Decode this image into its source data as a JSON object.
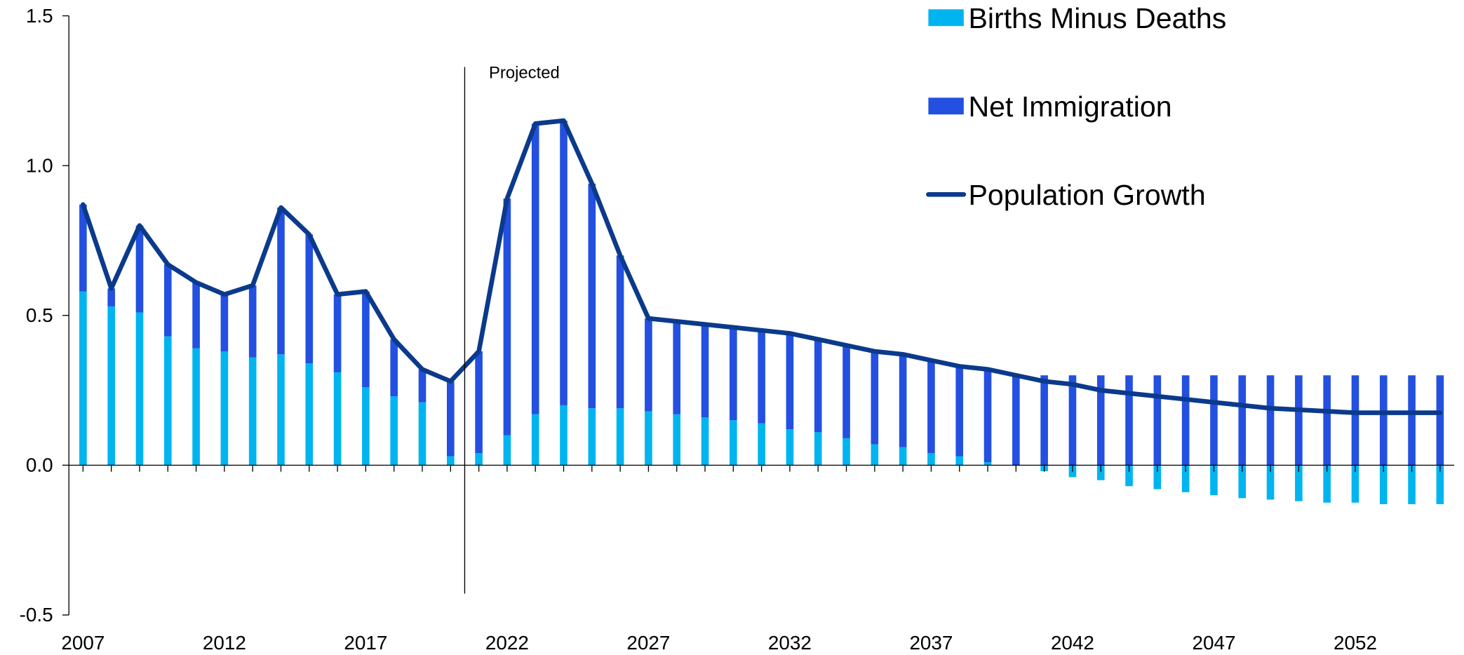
{
  "chart_data": {
    "type": "stacked-bar-line",
    "x": [
      2007,
      2008,
      2009,
      2010,
      2011,
      2012,
      2013,
      2014,
      2015,
      2016,
      2017,
      2018,
      2019,
      2020,
      2021,
      2022,
      2023,
      2024,
      2025,
      2026,
      2027,
      2028,
      2029,
      2030,
      2031,
      2032,
      2033,
      2034,
      2035,
      2036,
      2037,
      2038,
      2039,
      2040,
      2041,
      2042,
      2043,
      2044,
      2045,
      2046,
      2047,
      2048,
      2049,
      2050,
      2051,
      2052,
      2053,
      2054,
      2055
    ],
    "series": [
      {
        "name": "Births Minus Deaths",
        "kind": "bar",
        "color": "#00b4f0",
        "values": [
          0.58,
          0.53,
          0.51,
          0.43,
          0.39,
          0.38,
          0.36,
          0.37,
          0.34,
          0.31,
          0.26,
          0.23,
          0.21,
          0.03,
          0.04,
          0.1,
          0.17,
          0.2,
          0.19,
          0.19,
          0.18,
          0.17,
          0.16,
          0.15,
          0.14,
          0.12,
          0.11,
          0.09,
          0.07,
          0.06,
          0.04,
          0.03,
          0.01,
          0.0,
          -0.02,
          -0.04,
          -0.05,
          -0.07,
          -0.08,
          -0.09,
          -0.1,
          -0.11,
          -0.115,
          -0.12,
          -0.125,
          -0.125,
          -0.13,
          -0.13,
          -0.13
        ]
      },
      {
        "name": "Net Immigration",
        "kind": "bar",
        "color": "#2350e0",
        "values": [
          0.29,
          0.06,
          0.29,
          0.24,
          0.22,
          0.19,
          0.24,
          0.49,
          0.43,
          0.26,
          0.32,
          0.19,
          0.11,
          0.25,
          0.34,
          0.79,
          0.97,
          0.95,
          0.75,
          0.51,
          0.31,
          0.31,
          0.31,
          0.31,
          0.31,
          0.32,
          0.31,
          0.31,
          0.31,
          0.31,
          0.31,
          0.3,
          0.31,
          0.3,
          0.3,
          0.3,
          0.3,
          0.3,
          0.3,
          0.3,
          0.3,
          0.3,
          0.3,
          0.3,
          0.3,
          0.3,
          0.3,
          0.3,
          0.3
        ]
      },
      {
        "name": "Population Growth",
        "kind": "line",
        "color": "#0b3a8c",
        "values": [
          0.87,
          0.59,
          0.8,
          0.67,
          0.61,
          0.57,
          0.6,
          0.86,
          0.77,
          0.57,
          0.58,
          0.42,
          0.32,
          0.28,
          0.38,
          0.89,
          1.14,
          1.15,
          0.94,
          0.7,
          0.49,
          0.48,
          0.47,
          0.46,
          0.45,
          0.44,
          0.42,
          0.4,
          0.38,
          0.37,
          0.35,
          0.33,
          0.32,
          0.3,
          0.28,
          0.27,
          0.25,
          0.24,
          0.23,
          0.22,
          0.21,
          0.2,
          0.19,
          0.185,
          0.18,
          0.175,
          0.175,
          0.175,
          0.175
        ]
      }
    ],
    "xlim": [
      2006.5,
      2055.5
    ],
    "xticks": [
      2007,
      2012,
      2017,
      2022,
      2027,
      2032,
      2037,
      2042,
      2047,
      2052
    ],
    "ylim": [
      -0.5,
      1.5
    ],
    "yticks": [
      {
        "value": -0.5,
        "label": "-0.5"
      },
      {
        "value": 0,
        "label": "0.0"
      },
      {
        "value": 0.5,
        "label": "0.5"
      },
      {
        "value": 1,
        "label": "1.0"
      },
      {
        "value": 1.5,
        "label": "1.5"
      }
    ],
    "annotations": [
      {
        "text": "Projected",
        "x": 2020.5
      }
    ],
    "legend": "top-right"
  }
}
